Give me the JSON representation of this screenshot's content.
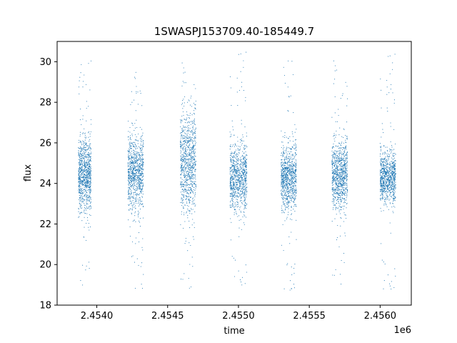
{
  "chart_data": {
    "type": "scatter",
    "title": "1SWASPJ153709.40-185449.7",
    "xlabel": "time",
    "ylabel": "flux",
    "x_offset_label": "1e6",
    "xlim": [
      2453720,
      2456220
    ],
    "ylim": [
      18,
      31
    ],
    "x_ticks": [
      2454000,
      2454500,
      2455000,
      2455500,
      2456000
    ],
    "x_tick_labels": [
      "2.4540",
      "2.4545",
      "2.4550",
      "2.4555",
      "2.4560"
    ],
    "y_ticks": [
      18,
      20,
      22,
      24,
      26,
      28,
      30
    ],
    "y_tick_labels": [
      "18",
      "20",
      "22",
      "24",
      "26",
      "28",
      "30"
    ],
    "marker_color": "#1f77b4",
    "grid": false,
    "series": [
      {
        "observing_seasons": [
          {
            "x_range": [
              2453870,
              2453960
            ],
            "center_flux": 24.4,
            "spread": 0.9,
            "y_range": [
              18.8,
              30.2
            ]
          },
          {
            "x_range": [
              2454220,
              2454330
            ],
            "center_flux": 24.5,
            "spread": 0.9,
            "y_range": [
              18.8,
              29.5
            ]
          },
          {
            "x_range": [
              2454590,
              2454700
            ],
            "center_flux": 25.0,
            "spread": 1.2,
            "y_range": [
              18.7,
              30.2
            ]
          },
          {
            "x_range": [
              2454940,
              2455060
            ],
            "center_flux": 24.3,
            "spread": 0.8,
            "y_range": [
              18.8,
              30.5
            ]
          },
          {
            "x_range": [
              2455300,
              2455410
            ],
            "center_flux": 24.3,
            "spread": 0.8,
            "y_range": [
              18.6,
              30.4
            ]
          },
          {
            "x_range": [
              2455660,
              2455770
            ],
            "center_flux": 24.4,
            "spread": 0.8,
            "y_range": [
              18.9,
              30.3
            ]
          },
          {
            "x_range": [
              2456000,
              2456110
            ],
            "center_flux": 24.3,
            "spread": 0.6,
            "y_range": [
              18.6,
              30.4
            ]
          }
        ]
      }
    ]
  }
}
